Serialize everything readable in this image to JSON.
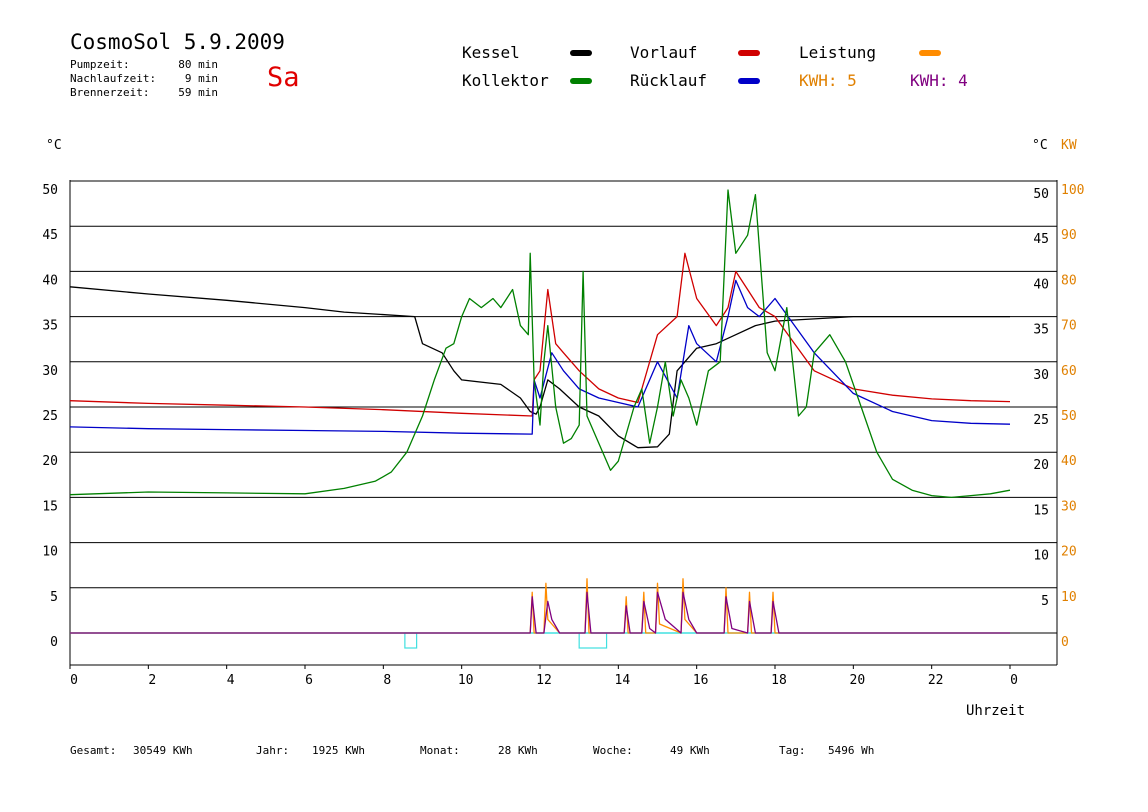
{
  "header": {
    "title": "CosmoSol 5.9.2009",
    "day": "Sa",
    "info": [
      {
        "label": "Pumpzeit:",
        "value": "80 min"
      },
      {
        "label": "Nachlaufzeit:",
        "value": "9 min"
      },
      {
        "label": "Brennerzeit:",
        "value": "59 min"
      }
    ]
  },
  "legend": {
    "kessel": "Kessel",
    "kollektor": "Kollektor",
    "vorlauf": "Vorlauf",
    "ruecklauf": "Rücklauf",
    "leistung": "Leistung",
    "kwh_orange": "KWH: 5",
    "kwh_purple": "KWH: 4"
  },
  "footer": {
    "gesamt_label": "Gesamt:",
    "gesamt_value": "30549 KWh",
    "jahr_label": "Jahr:",
    "jahr_value": "1925 KWh",
    "monat_label": "Monat:",
    "monat_value": "28 KWh",
    "woche_label": "Woche:",
    "woche_value": "49 KWh",
    "tag_label": "Tag:",
    "tag_value": "5496 Wh"
  },
  "colors": {
    "kessel": "#000000",
    "kollektor": "#008000",
    "vorlauf": "#d00000",
    "ruecklauf": "#0000c8",
    "leistung": "#ff8c00",
    "kwh2": "#800080",
    "pump": "#40e0e0",
    "axis_right": "#e08000"
  },
  "chart_data": {
    "type": "line",
    "xlabel": "Uhrzeit",
    "ylabel_left": "°C",
    "ylabel_right_temp": "°C",
    "ylabel_right_power": "KW",
    "xlim": [
      0,
      24
    ],
    "ylim": [
      0,
      50
    ],
    "y2lim": [
      0,
      100
    ],
    "x_ticks": [
      "0",
      "2",
      "4",
      "6",
      "8",
      "10",
      "12",
      "14",
      "16",
      "18",
      "20",
      "22",
      "0"
    ],
    "y_ticks_left": [
      "0",
      "5",
      "10",
      "15",
      "20",
      "25",
      "30",
      "35",
      "40",
      "45",
      "50"
    ],
    "y_ticks_right_temp": [
      "5",
      "10",
      "15",
      "20",
      "25",
      "30",
      "35",
      "40",
      "45",
      "50"
    ],
    "y_ticks_right_power": [
      "0",
      "10",
      "20",
      "30",
      "40",
      "50",
      "60",
      "70",
      "80",
      "90",
      "100"
    ],
    "grid": true,
    "series": [
      {
        "name": "Kessel",
        "color": "#000000",
        "x": [
          0,
          2,
          4,
          6,
          7,
          8.8,
          9.0,
          9.5,
          9.8,
          10.0,
          11.0,
          11.5,
          11.75,
          11.9,
          12.0,
          12.2,
          12.5,
          13.0,
          13.5,
          14.0,
          14.5,
          15.0,
          15.3,
          15.5,
          16.0,
          16.5,
          17.0,
          17.5,
          18.0,
          20.0,
          24.0
        ],
        "y": [
          38.3,
          37.5,
          36.8,
          36.0,
          35.5,
          35.0,
          32.0,
          31.0,
          29.0,
          28.0,
          27.5,
          26.0,
          24.5,
          24.2,
          25.0,
          28.0,
          27.0,
          25.0,
          24.0,
          21.8,
          20.5,
          20.6,
          22.0,
          29.0,
          31.5,
          32.0,
          33.0,
          34.0,
          34.5,
          35.0,
          35.0
        ]
      },
      {
        "name": "Vorlauf",
        "color": "#d00000",
        "x": [
          0,
          2,
          4,
          6,
          8,
          10,
          11.8,
          11.85,
          12.0,
          12.2,
          12.4,
          12.6,
          13.0,
          13.5,
          14.0,
          14.5,
          15.0,
          15.5,
          15.7,
          16.0,
          16.5,
          16.8,
          17.0,
          17.3,
          17.6,
          18.0,
          18.5,
          19.0,
          20.0,
          21.0,
          22.0,
          23.0,
          24.0
        ],
        "y": [
          25.7,
          25.4,
          25.2,
          25.0,
          24.7,
          24.3,
          24.0,
          28.0,
          29.0,
          38.0,
          32.0,
          31.0,
          29.0,
          27.0,
          26.0,
          25.5,
          33.0,
          35.0,
          42.0,
          37.0,
          34.0,
          36.0,
          40.0,
          38.0,
          36.0,
          35.0,
          32.0,
          29.0,
          27.0,
          26.3,
          25.9,
          25.7,
          25.6
        ]
      },
      {
        "name": "Rücklauf",
        "color": "#0000c8",
        "x": [
          0,
          2,
          4,
          6,
          8,
          10,
          11.8,
          11.85,
          12.0,
          12.3,
          12.6,
          13.0,
          13.5,
          14.0,
          14.5,
          15.0,
          15.5,
          15.8,
          16.0,
          16.5,
          16.8,
          17.0,
          17.3,
          17.6,
          18.0,
          18.5,
          19.0,
          20.0,
          21.0,
          22.0,
          23.0,
          24.0
        ],
        "y": [
          22.8,
          22.6,
          22.5,
          22.4,
          22.3,
          22.1,
          22.0,
          28.0,
          26.0,
          31.0,
          29.0,
          27.0,
          26.0,
          25.5,
          25.0,
          30.0,
          26.0,
          34.0,
          32.0,
          30.0,
          35.0,
          39.0,
          36.0,
          35.0,
          37.0,
          34.0,
          31.0,
          26.5,
          24.5,
          23.5,
          23.2,
          23.1
        ]
      },
      {
        "name": "Kollektor",
        "color": "#008000",
        "x": [
          0,
          2,
          4,
          6,
          7,
          7.8,
          8.2,
          8.6,
          9.0,
          9.3,
          9.6,
          9.8,
          10.0,
          10.2,
          10.5,
          10.8,
          11.0,
          11.3,
          11.5,
          11.7,
          11.75,
          11.85,
          12.0,
          12.1,
          12.2,
          12.4,
          12.6,
          12.8,
          13.0,
          13.1,
          13.2,
          13.5,
          13.8,
          14.0,
          14.2,
          14.4,
          14.6,
          14.8,
          15.0,
          15.2,
          15.4,
          15.6,
          15.8,
          16.0,
          16.3,
          16.6,
          16.8,
          17.0,
          17.3,
          17.5,
          17.8,
          18.0,
          18.3,
          18.6,
          18.8,
          19.0,
          19.4,
          19.8,
          20.2,
          20.6,
          21.0,
          21.5,
          22.0,
          22.5,
          23.0,
          23.5,
          24.0
        ],
        "y": [
          15.3,
          15.6,
          15.5,
          15.4,
          16.0,
          16.8,
          17.8,
          20.0,
          24.0,
          28.0,
          31.5,
          32.0,
          35.0,
          37.0,
          36.0,
          37.0,
          36.0,
          38.0,
          34.0,
          33.0,
          42.0,
          28.0,
          23.0,
          30.0,
          34.0,
          25.0,
          21.0,
          21.5,
          23.0,
          40.0,
          24.0,
          21.0,
          18.0,
          19.0,
          22.0,
          25.0,
          27.0,
          21.0,
          25.0,
          30.0,
          24.0,
          28.0,
          26.0,
          23.0,
          29.0,
          30.0,
          49.0,
          42.0,
          44.0,
          48.5,
          31.0,
          29.0,
          36.0,
          24.0,
          25.0,
          31.0,
          33.0,
          30.0,
          25.0,
          20.0,
          17.0,
          15.8,
          15.2,
          15.0,
          15.2,
          15.4,
          15.8
        ]
      },
      {
        "name": "Leistung",
        "color": "#ff8c00",
        "axis": "right_power",
        "x": [
          0,
          11.75,
          11.8,
          11.85,
          12.1,
          12.15,
          12.2,
          12.3,
          12.5,
          13.15,
          13.2,
          13.25,
          14.15,
          14.2,
          14.25,
          14.6,
          14.65,
          14.7,
          14.95,
          15.0,
          15.05,
          15.6,
          15.65,
          15.7,
          16.0,
          16.7,
          16.75,
          16.8,
          17.3,
          17.35,
          17.4,
          17.9,
          17.95,
          18.0,
          24.0
        ],
        "y": [
          0,
          0,
          9,
          0,
          0,
          11,
          3,
          2,
          0,
          0,
          12,
          0,
          0,
          8,
          0,
          0,
          9,
          0,
          0,
          11,
          2,
          0,
          12,
          3,
          0,
          0,
          10,
          0,
          0,
          9,
          0,
          0,
          9,
          0,
          0
        ]
      },
      {
        "name": "KWH: 4",
        "color": "#800080",
        "axis": "right_power",
        "x": [
          0,
          11.75,
          11.8,
          11.9,
          12.1,
          12.2,
          12.3,
          12.5,
          13.15,
          13.2,
          13.3,
          14.15,
          14.2,
          14.3,
          14.6,
          14.65,
          14.8,
          14.95,
          15.0,
          15.2,
          15.6,
          15.65,
          15.8,
          16.0,
          16.7,
          16.75,
          16.9,
          17.3,
          17.35,
          17.5,
          17.9,
          17.95,
          18.1,
          24.0
        ],
        "y": [
          0,
          0,
          8,
          0,
          0,
          7,
          3,
          0,
          0,
          9,
          0,
          0,
          6,
          0,
          0,
          7,
          1,
          0,
          9,
          3,
          0,
          9,
          3,
          0,
          0,
          8,
          1,
          0,
          7,
          0,
          0,
          7,
          0,
          0
        ]
      }
    ],
    "pump_markers": [
      {
        "start": 8.55,
        "end": 8.85,
        "label": ""
      },
      {
        "start": 13.0,
        "end": 13.7,
        "label": ""
      }
    ]
  }
}
